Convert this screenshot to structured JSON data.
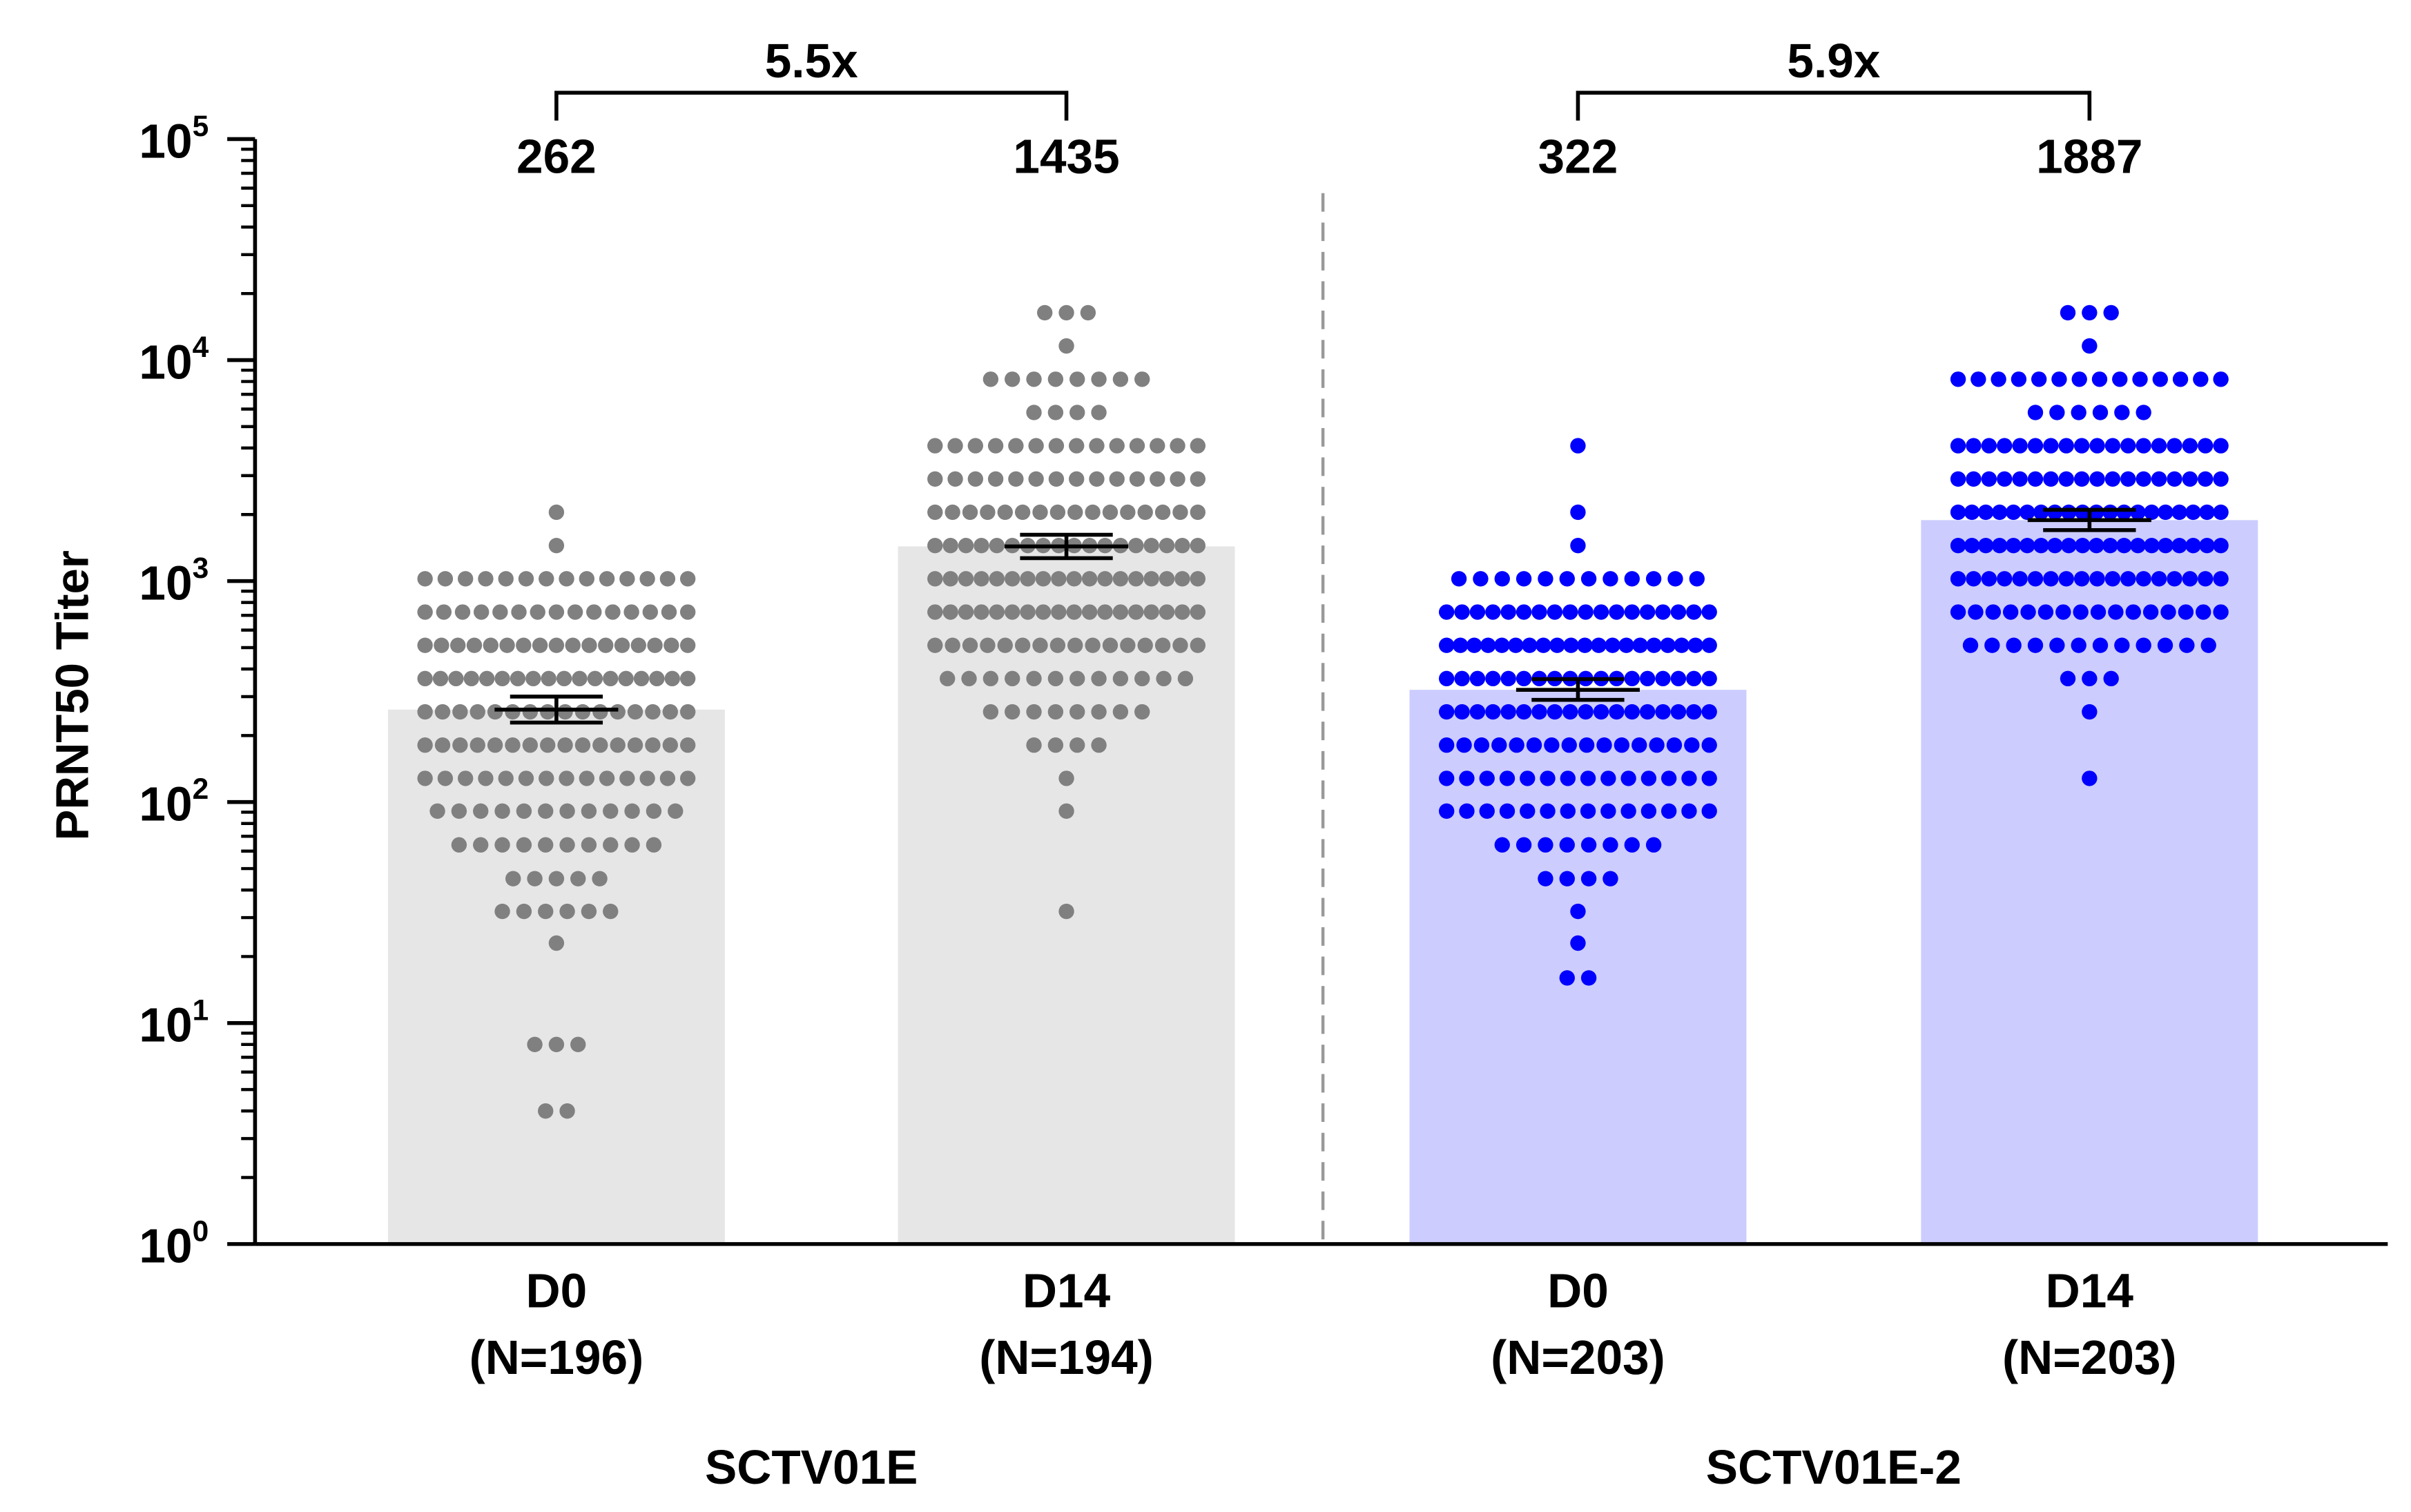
{
  "chart_data": {
    "type": "bar",
    "yscale": "log",
    "ylabel": "PRNT50 Titer",
    "ylim": [
      1,
      100000
    ],
    "ytick_labels": [
      {
        "base": "10",
        "exp": "0"
      },
      {
        "base": "10",
        "exp": "1"
      },
      {
        "base": "10",
        "exp": "2"
      },
      {
        "base": "10",
        "exp": "3"
      },
      {
        "base": "10",
        "exp": "4"
      },
      {
        "base": "10",
        "exp": "5"
      }
    ],
    "grid": false,
    "groups": [
      {
        "name": "SCTV01E",
        "color": "#000000",
        "bar_color": "#e6e6e6",
        "dot_color": "#808080",
        "fold_change": "5.5x"
      },
      {
        "name": "SCTV01E-2",
        "color": "#0000ff",
        "bar_color": "#ccccff",
        "dot_color": "#0000ff",
        "fold_change": "5.9x"
      }
    ],
    "bars": [
      {
        "group": 0,
        "label": "D0",
        "n_label": "(N=196)",
        "value": 262,
        "value_label": "262",
        "ci": [
          229,
          300
        ],
        "points": [
          [
            4,
            2
          ],
          [
            8,
            3
          ],
          [
            23,
            1
          ],
          [
            32,
            6
          ],
          [
            45,
            5
          ],
          [
            64,
            10
          ],
          [
            91,
            12
          ],
          [
            128,
            14
          ],
          [
            181,
            16
          ],
          [
            256,
            16
          ],
          [
            362,
            18
          ],
          [
            512,
            17
          ],
          [
            724,
            15
          ],
          [
            1024,
            14
          ],
          [
            1448,
            1
          ],
          [
            2048,
            1
          ]
        ]
      },
      {
        "group": 0,
        "label": "D14",
        "n_label": "(N=194)",
        "value": 1435,
        "value_label": "1435",
        "ci": [
          1270,
          1620
        ],
        "points": [
          [
            32,
            1
          ],
          [
            91,
            1
          ],
          [
            128,
            1
          ],
          [
            181,
            4
          ],
          [
            256,
            8
          ],
          [
            362,
            12
          ],
          [
            512,
            16
          ],
          [
            724,
            18
          ],
          [
            1024,
            18
          ],
          [
            1448,
            18
          ],
          [
            2048,
            16
          ],
          [
            2896,
            14
          ],
          [
            4096,
            14
          ],
          [
            5793,
            4
          ],
          [
            8192,
            8
          ],
          [
            11585,
            1
          ],
          [
            16384,
            3
          ]
        ]
      },
      {
        "group": 1,
        "label": "D0",
        "n_label": "(N=203)",
        "value": 322,
        "value_label": "322",
        "ci": [
          290,
          360
        ],
        "points": [
          [
            16,
            2
          ],
          [
            23,
            1
          ],
          [
            32,
            1
          ],
          [
            45,
            4
          ],
          [
            64,
            8
          ],
          [
            91,
            14
          ],
          [
            128,
            14
          ],
          [
            181,
            16
          ],
          [
            256,
            18
          ],
          [
            362,
            18
          ],
          [
            512,
            20
          ],
          [
            724,
            18
          ],
          [
            1024,
            12
          ],
          [
            1448,
            1
          ],
          [
            2048,
            1
          ],
          [
            4096,
            1
          ]
        ]
      },
      {
        "group": 1,
        "label": "D14",
        "n_label": "(N=203)",
        "value": 1887,
        "value_label": "1887",
        "ci": [
          1700,
          2100
        ],
        "points": [
          [
            128,
            1
          ],
          [
            256,
            1
          ],
          [
            362,
            3
          ],
          [
            512,
            12
          ],
          [
            724,
            16
          ],
          [
            1024,
            18
          ],
          [
            1448,
            20
          ],
          [
            2048,
            20
          ],
          [
            2896,
            18
          ],
          [
            4096,
            18
          ],
          [
            5793,
            6
          ],
          [
            8192,
            14
          ],
          [
            11585,
            1
          ],
          [
            16384,
            3
          ]
        ]
      }
    ]
  }
}
